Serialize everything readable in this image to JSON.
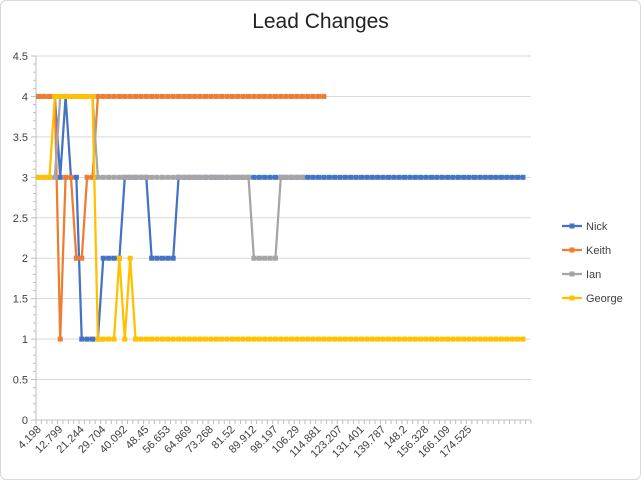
{
  "chart_data": {
    "type": "line",
    "title": "Lead Changes",
    "xlabel": "",
    "ylabel": "",
    "ylim": [
      0,
      4.5
    ],
    "y_ticks": [
      "0",
      "0.5",
      "1",
      "1.5",
      "2",
      "2.5",
      "3",
      "3.5",
      "4",
      "4.5"
    ],
    "x_tick_labels": [
      "4.198",
      "12.799",
      "21.244",
      "29.704",
      "40.092",
      "48.45",
      "56.653",
      "64.869",
      "73.268",
      "81.52",
      "89.912",
      "98.197",
      "106.29",
      "114.881",
      "123.207",
      "131.401",
      "139.787",
      "148.2",
      "156.328",
      "166.109",
      "174.525"
    ],
    "grid": "horizontal",
    "legend_position": "right",
    "colors": {
      "Nick": "#4472c4",
      "Keith": "#ed7d31",
      "Ian": "#a5a5a5",
      "George": "#ffc000"
    },
    "series": [
      {
        "name": "Nick",
        "values": [
          4,
          4,
          4,
          4,
          3,
          4,
          3,
          3,
          1,
          1,
          1,
          1,
          2,
          2,
          2,
          2,
          3,
          3,
          3,
          3,
          3,
          2,
          2,
          2,
          2,
          2,
          3,
          3,
          3,
          3,
          3,
          3,
          3,
          3,
          3,
          3,
          3,
          3,
          3,
          3,
          3,
          3,
          3,
          3,
          3,
          3,
          3,
          3,
          3,
          3,
          3,
          3,
          3,
          3,
          3,
          3,
          3,
          3,
          3,
          3,
          3,
          3,
          3,
          3,
          3,
          3,
          3,
          3,
          3,
          3,
          3,
          3,
          3,
          3,
          3,
          3,
          3,
          3,
          3,
          3,
          3,
          3,
          3,
          3,
          3,
          3,
          3,
          3,
          3,
          3,
          3
        ]
      },
      {
        "name": "Keith",
        "values": [
          4,
          4,
          4,
          4,
          1,
          3,
          3,
          2,
          2,
          3,
          3,
          4,
          4,
          4,
          4,
          4,
          4,
          4,
          4,
          4,
          4,
          4,
          4,
          4,
          4,
          4,
          4,
          4,
          4,
          4,
          4,
          4,
          4,
          4,
          4,
          4,
          4,
          4,
          4,
          4,
          4,
          4,
          4,
          4,
          4,
          4,
          4,
          4,
          4,
          4,
          4,
          4,
          4,
          4
        ]
      },
      {
        "name": "Ian",
        "values": [
          3,
          3,
          3,
          3,
          4,
          4,
          4,
          4,
          4,
          4,
          4,
          3,
          3,
          3,
          3,
          3,
          3,
          3,
          3,
          3,
          3,
          3,
          3,
          3,
          3,
          3,
          3,
          3,
          3,
          3,
          3,
          3,
          3,
          3,
          3,
          3,
          3,
          3,
          3,
          3,
          2,
          2,
          2,
          2,
          2,
          3,
          3,
          3,
          3,
          3
        ]
      },
      {
        "name": "George",
        "values": [
          3,
          3,
          3,
          4,
          4,
          4,
          4,
          4,
          4,
          4,
          4,
          1,
          1,
          1,
          1,
          2,
          1,
          2,
          1,
          1,
          1,
          1,
          1,
          1,
          1,
          1,
          1,
          1,
          1,
          1,
          1,
          1,
          1,
          1,
          1,
          1,
          1,
          1,
          1,
          1,
          1,
          1,
          1,
          1,
          1,
          1,
          1,
          1,
          1,
          1,
          1,
          1,
          1,
          1,
          1,
          1,
          1,
          1,
          1,
          1,
          1,
          1,
          1,
          1,
          1,
          1,
          1,
          1,
          1,
          1,
          1,
          1,
          1,
          1,
          1,
          1,
          1,
          1,
          1,
          1,
          1,
          1,
          1,
          1,
          1,
          1,
          1,
          1,
          1,
          1,
          1
        ]
      }
    ]
  }
}
